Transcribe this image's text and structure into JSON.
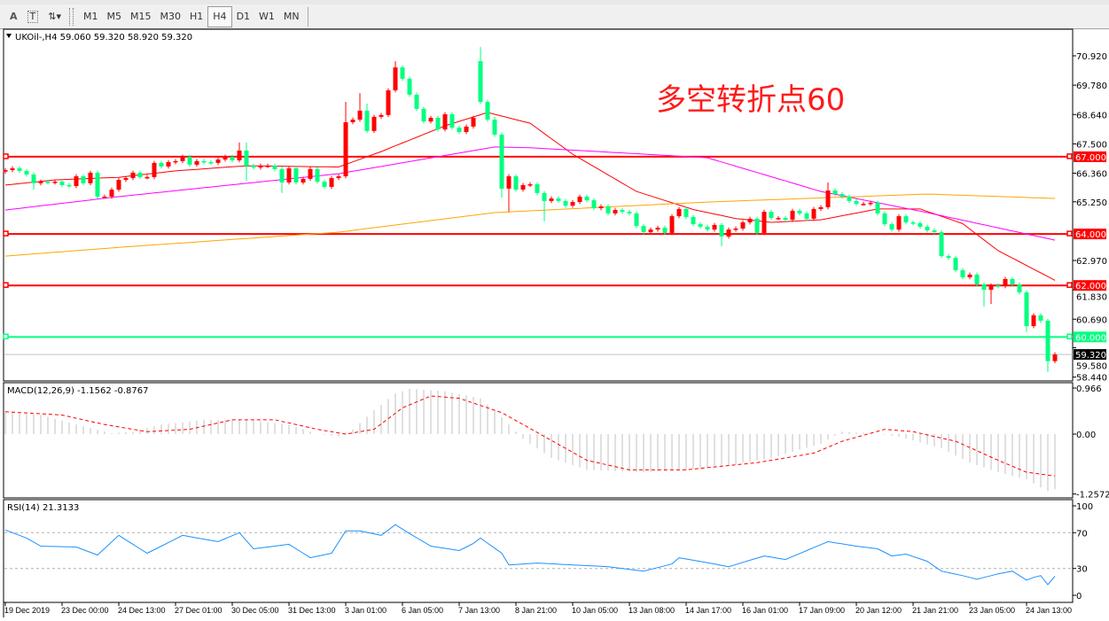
{
  "toolbar": {
    "tools": [
      {
        "label": "A",
        "icon": "text-tool-icon"
      },
      {
        "label": "T",
        "icon": "text-label-tool-icon"
      },
      {
        "label": "⇅▾",
        "icon": "arrows-tool-icon"
      }
    ],
    "timeframes": [
      "M1",
      "M5",
      "M15",
      "M30",
      "H1",
      "H4",
      "D1",
      "W1",
      "MN"
    ],
    "selected_timeframe": "H4"
  },
  "chart_data": [
    {
      "type": "candlestick",
      "title": "UKOil-,H4  59.060 59.320 58.920 59.320",
      "symbol": "UKOil-",
      "timeframe": "H4",
      "colors": {
        "up": "#ff0000",
        "down": "#00ff7f",
        "ma_fast": "#ff0000",
        "ma_mid": "#ff00ff",
        "ma_slow": "#ffa500",
        "level_red": "#ff0000",
        "level_green": "#00ff7f"
      },
      "ylim": [
        58.2,
        71.8
      ],
      "y_ticks": [
        "70.920",
        "69.780",
        "68.640",
        "67.500",
        "66.360",
        "65.250",
        "62.970",
        "61.830",
        "60.690",
        "59.580",
        "58.440"
      ],
      "x_tick_labels": [
        "19 Dec 2019",
        "23 Dec 00:00",
        "24 Dec 13:00",
        "27 Dec 01:00",
        "30 Dec 05:00",
        "31 Dec 13:00",
        "3 Jan 01:00",
        "6 Jan 05:00",
        "7 Jan 13:00",
        "8 Jan 21:00",
        "10 Jan 05:00",
        "13 Jan 08:00",
        "14 Jan 17:00",
        "16 Jan 01:00",
        "17 Jan 09:00",
        "20 Jan 12:00",
        "21 Jan 21:00",
        "23 Jan 05:00",
        "24 Jan 13:00"
      ],
      "x_tick_every_bars": 8,
      "open": [
        66.42,
        66.48,
        66.55,
        66.45,
        66.31,
        65.97,
        66.03,
        66.0,
        66.03,
        65.9,
        65.86,
        66.24,
        65.97,
        66.38,
        65.45,
        65.45,
        65.72,
        66.1,
        66.17,
        66.38,
        66.21,
        66.21,
        66.76,
        66.62,
        66.79,
        66.83,
        67.0,
        66.69,
        66.83,
        66.79,
        66.76,
        66.89,
        67.0,
        66.86,
        67.24,
        66.65,
        66.58,
        66.65,
        66.65,
        66.52,
        66.0,
        66.55,
        66.0,
        66.14,
        66.52,
        66.03,
        65.83,
        66.17,
        66.24,
        68.34,
        68.44,
        68.79,
        68.0,
        68.55,
        68.62,
        69.58,
        70.47,
        70.03,
        69.41,
        68.86,
        68.37,
        68.51,
        68.06,
        68.65,
        68.13,
        67.96,
        68.17,
        70.71,
        69.13,
        68.44,
        67.86,
        65.76,
        66.24,
        65.72,
        65.9,
        65.93,
        65.59,
        65.28,
        65.38,
        65.28,
        65.1,
        65.24,
        65.45,
        65.31,
        65.0,
        65.07,
        64.8,
        64.93,
        64.86,
        64.8,
        64.31,
        64.07,
        64.17,
        64.24,
        64.04,
        64.69,
        64.97,
        64.66,
        64.38,
        64.28,
        64.17,
        64.35,
        63.9,
        64.17,
        64.21,
        64.45,
        64.59,
        64.04,
        64.86,
        64.62,
        64.62,
        64.55,
        64.9,
        64.8,
        64.59,
        64.97,
        65.04,
        65.69,
        65.55,
        65.45,
        65.28,
        65.17,
        65.17,
        65.21,
        64.8,
        64.38,
        64.17,
        64.69,
        64.45,
        64.42,
        64.28,
        64.14,
        64.07,
        63.14,
        63.07,
        62.59,
        62.32,
        62.42,
        62.04,
        61.83,
        62.0,
        61.97,
        62.25,
        62.04,
        61.73,
        60.42,
        60.84,
        60.63,
        59.06
      ],
      "close": [
        66.48,
        66.55,
        66.45,
        66.31,
        65.97,
        66.03,
        66.0,
        66.03,
        65.9,
        65.86,
        66.24,
        65.97,
        66.38,
        65.45,
        65.45,
        65.72,
        66.1,
        66.17,
        66.38,
        66.21,
        66.21,
        66.76,
        66.62,
        66.79,
        66.83,
        67.0,
        66.69,
        66.83,
        66.79,
        66.76,
        66.89,
        67.0,
        66.86,
        67.24,
        66.65,
        66.58,
        66.65,
        66.65,
        66.52,
        66.0,
        66.55,
        66.0,
        66.14,
        66.52,
        66.03,
        65.83,
        66.17,
        66.24,
        68.34,
        68.44,
        68.79,
        68.0,
        68.55,
        68.62,
        69.58,
        70.47,
        70.03,
        69.41,
        68.86,
        68.37,
        68.51,
        68.06,
        68.65,
        68.13,
        67.96,
        68.17,
        68.51,
        69.13,
        68.44,
        67.86,
        65.76,
        66.24,
        65.72,
        65.9,
        65.93,
        65.59,
        65.28,
        65.38,
        65.28,
        65.1,
        65.24,
        65.45,
        65.31,
        65.0,
        65.07,
        64.8,
        64.93,
        64.86,
        64.8,
        64.31,
        64.07,
        64.17,
        64.24,
        64.04,
        64.69,
        64.97,
        64.66,
        64.38,
        64.28,
        64.17,
        64.35,
        63.9,
        64.17,
        64.21,
        64.45,
        64.59,
        64.04,
        64.86,
        64.62,
        64.62,
        64.55,
        64.9,
        64.8,
        64.59,
        64.97,
        65.04,
        65.69,
        65.55,
        65.45,
        65.28,
        65.17,
        65.17,
        65.21,
        64.8,
        64.38,
        64.17,
        64.69,
        64.45,
        64.42,
        64.28,
        64.14,
        64.07,
        63.14,
        63.07,
        62.59,
        62.32,
        62.42,
        62.04,
        61.83,
        62.0,
        61.97,
        62.25,
        62.04,
        61.73,
        60.42,
        60.84,
        60.63,
        59.06,
        59.32
      ],
      "notable_highs": {
        "33": 67.55,
        "34": 67.55,
        "48": 69.13,
        "50": 69.47,
        "51": 69.06,
        "55": 70.71,
        "67": 71.26,
        "69": 68.55,
        "116": 66.0
      },
      "notable_lows": {
        "4": 65.72,
        "34": 66.07,
        "39": 65.59,
        "70": 65.41,
        "71": 64.86,
        "76": 64.49,
        "101": 63.52,
        "138": 61.18,
        "139": 61.28,
        "144": 60.2,
        "147": 58.63
      },
      "moving_averages": [
        {
          "color": "#ff0000",
          "points": [
            [
              0,
              65.9
            ],
            [
              7,
              66.1
            ],
            [
              16,
              66.2
            ],
            [
              24,
              66.45
            ],
            [
              34,
              66.65
            ],
            [
              47,
              66.6
            ],
            [
              53,
              67.2
            ],
            [
              62,
              68.2
            ],
            [
              68,
              68.72
            ],
            [
              74,
              68.3
            ],
            [
              80,
              67.1
            ],
            [
              89,
              65.65
            ],
            [
              97,
              64.95
            ],
            [
              103,
              64.6
            ],
            [
              108,
              64.45
            ],
            [
              115,
              64.55
            ],
            [
              123,
              64.97
            ],
            [
              129,
              64.97
            ],
            [
              135,
              64.4
            ],
            [
              140,
              63.35
            ],
            [
              148,
              62.2
            ]
          ]
        },
        {
          "color": "#ff00ff",
          "points": [
            [
              0,
              64.93
            ],
            [
              16,
              65.45
            ],
            [
              47,
              66.34
            ],
            [
              69,
              67.38
            ],
            [
              74,
              67.35
            ],
            [
              99,
              66.96
            ],
            [
              115,
              65.65
            ],
            [
              130,
              64.83
            ],
            [
              148,
              63.76
            ]
          ]
        },
        {
          "color": "#ffa500",
          "points": [
            [
              0,
              63.14
            ],
            [
              17,
              63.5
            ],
            [
              47,
              64.07
            ],
            [
              69,
              64.83
            ],
            [
              99,
              65.24
            ],
            [
              130,
              65.55
            ],
            [
              148,
              65.38
            ]
          ]
        }
      ],
      "levels": [
        {
          "price": 67.0,
          "label": "67.000",
          "color": "#ff0000"
        },
        {
          "price": 64.0,
          "label": "64.000",
          "color": "#ff0000"
        },
        {
          "price": 62.0,
          "label": "62.000",
          "color": "#ff0000"
        },
        {
          "price": 60.0,
          "label": "60.000",
          "color": "#00ff7f"
        }
      ],
      "current_price": {
        "price": 59.32,
        "label": "59.320"
      },
      "annotation": "多空转折点60"
    },
    {
      "type": "bar+line",
      "title": "MACD(12,26,9) -1.1562 -0.8767",
      "y_ticks": [
        "0.966",
        "0.00",
        "-1.2572"
      ],
      "ylim": [
        -1.35,
        1.08
      ],
      "histogram_points": [
        [
          0,
          0.47
        ],
        [
          5,
          0.4
        ],
        [
          10,
          0.2
        ],
        [
          15,
          0.02
        ],
        [
          18,
          0.05
        ],
        [
          22,
          0.2
        ],
        [
          28,
          0.3
        ],
        [
          34,
          0.3
        ],
        [
          40,
          0.2
        ],
        [
          44,
          0.0
        ],
        [
          47,
          -0.05
        ],
        [
          49,
          0.1
        ],
        [
          52,
          0.5
        ],
        [
          55,
          0.85
        ],
        [
          57,
          0.95
        ],
        [
          62,
          0.9
        ],
        [
          67,
          0.75
        ],
        [
          70,
          0.35
        ],
        [
          73,
          -0.1
        ],
        [
          77,
          -0.5
        ],
        [
          82,
          -0.75
        ],
        [
          90,
          -0.8
        ],
        [
          100,
          -0.7
        ],
        [
          108,
          -0.5
        ],
        [
          115,
          -0.2
        ],
        [
          118,
          0.05
        ],
        [
          122,
          0.02
        ],
        [
          126,
          -0.05
        ],
        [
          132,
          -0.3
        ],
        [
          136,
          -0.6
        ],
        [
          140,
          -0.8
        ],
        [
          144,
          -0.95
        ],
        [
          147,
          -1.2
        ],
        [
          148,
          -1.16
        ]
      ],
      "signal_points": [
        [
          0,
          0.47
        ],
        [
          8,
          0.4
        ],
        [
          14,
          0.2
        ],
        [
          20,
          0.05
        ],
        [
          26,
          0.1
        ],
        [
          32,
          0.3
        ],
        [
          38,
          0.3
        ],
        [
          44,
          0.1
        ],
        [
          48,
          0.0
        ],
        [
          52,
          0.1
        ],
        [
          56,
          0.55
        ],
        [
          60,
          0.8
        ],
        [
          64,
          0.75
        ],
        [
          70,
          0.45
        ],
        [
          76,
          -0.05
        ],
        [
          82,
          -0.55
        ],
        [
          88,
          -0.75
        ],
        [
          96,
          -0.75
        ],
        [
          106,
          -0.6
        ],
        [
          114,
          -0.4
        ],
        [
          118,
          -0.15
        ],
        [
          124,
          0.1
        ],
        [
          128,
          0.05
        ],
        [
          134,
          -0.15
        ],
        [
          140,
          -0.55
        ],
        [
          144,
          -0.8
        ],
        [
          148,
          -0.88
        ]
      ],
      "colors": {
        "histogram": "#c0c0c0",
        "signal": "#ff0000"
      }
    },
    {
      "type": "line",
      "title": "RSI(14) 21.3133",
      "y_ticks": [
        "100",
        "70",
        "30",
        "0"
      ],
      "ylim": [
        0,
        100
      ],
      "levels": [
        70,
        30
      ],
      "color": "#1e90ff",
      "points": [
        [
          0,
          73
        ],
        [
          3,
          64
        ],
        [
          5,
          55
        ],
        [
          10,
          54
        ],
        [
          13,
          45
        ],
        [
          16,
          67
        ],
        [
          20,
          47
        ],
        [
          25,
          67
        ],
        [
          30,
          60
        ],
        [
          33,
          70
        ],
        [
          35,
          52
        ],
        [
          40,
          57
        ],
        [
          43,
          42
        ],
        [
          46,
          47
        ],
        [
          48,
          72
        ],
        [
          50,
          72
        ],
        [
          53,
          67
        ],
        [
          55,
          79
        ],
        [
          57,
          69
        ],
        [
          60,
          55
        ],
        [
          64,
          50
        ],
        [
          66,
          58
        ],
        [
          67,
          64
        ],
        [
          70,
          47
        ],
        [
          71,
          34
        ],
        [
          75,
          36
        ],
        [
          80,
          34
        ],
        [
          85,
          32
        ],
        [
          90,
          27
        ],
        [
          94,
          35
        ],
        [
          95,
          42
        ],
        [
          100,
          35
        ],
        [
          102,
          32
        ],
        [
          107,
          44
        ],
        [
          110,
          40
        ],
        [
          113,
          50
        ],
        [
          116,
          60
        ],
        [
          120,
          55
        ],
        [
          123,
          52
        ],
        [
          125,
          44
        ],
        [
          127,
          46
        ],
        [
          130,
          38
        ],
        [
          132,
          27
        ],
        [
          135,
          22
        ],
        [
          137,
          18
        ],
        [
          140,
          24
        ],
        [
          142,
          27
        ],
        [
          144,
          17
        ],
        [
          145,
          20
        ],
        [
          146,
          22
        ],
        [
          147,
          12
        ],
        [
          148,
          21.3
        ]
      ]
    }
  ]
}
